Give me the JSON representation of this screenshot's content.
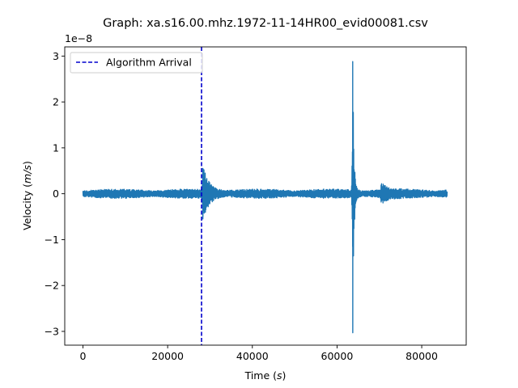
{
  "chart_data": {
    "type": "line",
    "title": "Graph: xa.s16.00.mhz.1972-11-14HR00_evid00081.csv",
    "xlabel": "Time ($s$)",
    "ylabel": "Velocity ($m/s$)",
    "y_offset_label": "1e−8",
    "xlim": [
      -4300,
      90500
    ],
    "ylim": [
      -3.3,
      3.2
    ],
    "x_ticks": [
      0,
      20000,
      40000,
      60000,
      80000
    ],
    "x_tick_labels": [
      "0",
      "20000",
      "40000",
      "60000",
      "80000"
    ],
    "y_ticks": [
      -3,
      -2,
      -1,
      0,
      1,
      2,
      3
    ],
    "y_tick_labels": [
      "−3",
      "−2",
      "−1",
      "0",
      "1",
      "2",
      "3"
    ],
    "y_scale_multiplier": 1e-08,
    "grid": false,
    "legend_position": "top-left",
    "series": [
      {
        "name": "",
        "color": "#1f77b4",
        "x_start": 0,
        "x_end": 86000,
        "baseline_amplitude": 0.08,
        "events": [
          {
            "x": 28300,
            "peak": 0.55,
            "trough": -0.55
          },
          {
            "x": 63700,
            "peak": 2.88,
            "trough": -3.03
          },
          {
            "x": 70400,
            "peak": 0.18,
            "trough": -0.18
          }
        ]
      }
    ],
    "annotations": [
      {
        "type": "vline",
        "label": "Algorithm Arrival",
        "x": 28000,
        "color": "#0000cd",
        "style": "dashed"
      }
    ]
  }
}
